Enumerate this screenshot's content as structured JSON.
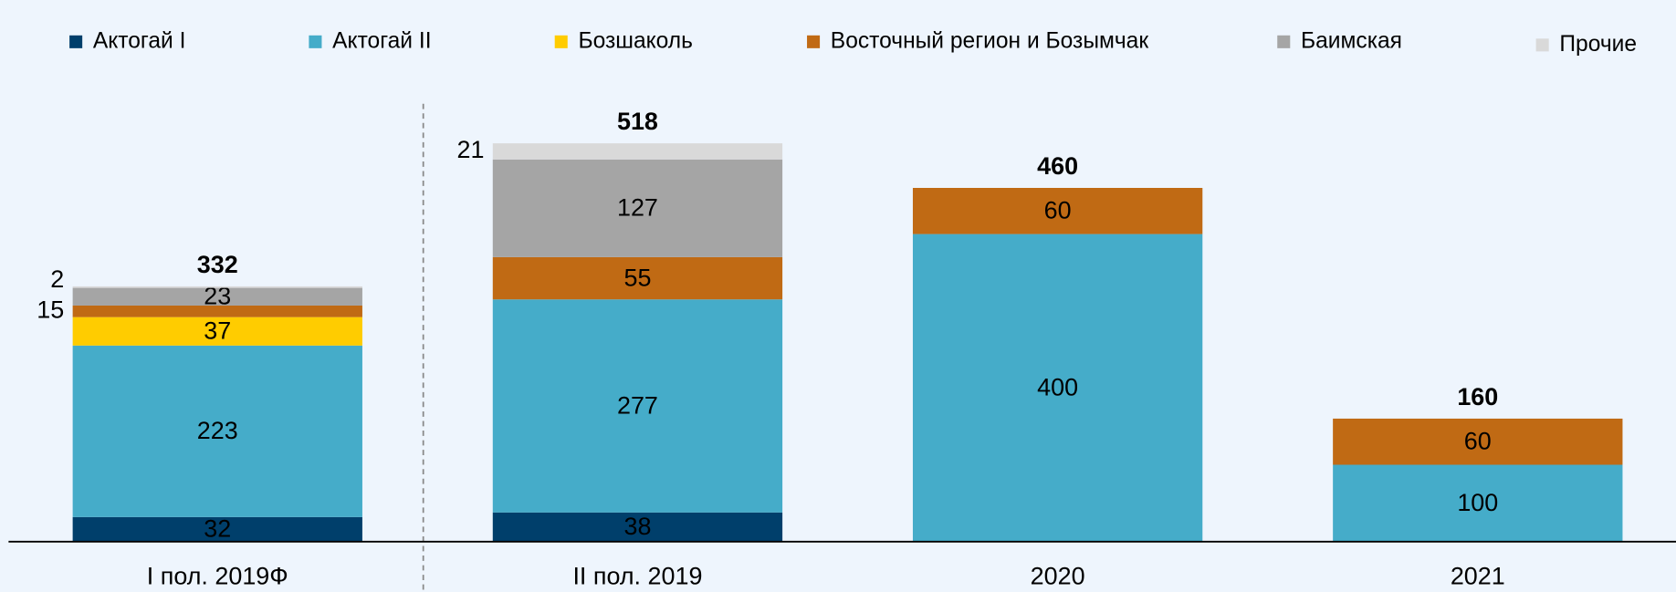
{
  "chart_data": {
    "type": "stacked_bar",
    "categories": [
      "I пол. 2019Ф",
      "II пол. 2019",
      "2020",
      "2021"
    ],
    "series": [
      {
        "name": "Актогай I",
        "color": "#003f6b",
        "label_color": "#ffffff",
        "values": [
          32,
          38,
          null,
          null
        ]
      },
      {
        "name": "Актогай II",
        "color": "#45acc9",
        "label_color": "#000000",
        "values": [
          223,
          277,
          400,
          100
        ]
      },
      {
        "name": "Бозшаколь",
        "color": "#ffcc00",
        "label_color": "#000000",
        "values": [
          37,
          null,
          null,
          null
        ]
      },
      {
        "name": "Восточный регион и Бозымчак",
        "color": "#c06a14",
        "label_color": "#ffffff",
        "values": [
          15,
          55,
          60,
          60
        ]
      },
      {
        "name": "Баимская",
        "color": "#a5a5a5",
        "label_color": "#000000",
        "values": [
          23,
          127,
          null,
          null
        ]
      },
      {
        "name": "Прочие",
        "color": "#d9d9d9",
        "label_color": "#000000",
        "values": [
          2,
          21,
          null,
          null
        ]
      }
    ],
    "totals": [
      332,
      518,
      460,
      160
    ]
  }
}
